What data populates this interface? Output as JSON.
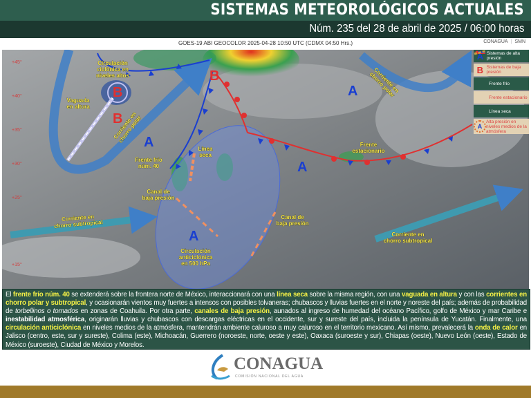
{
  "header": {
    "title": "SISTEMAS METEOROLÓGICOS ACTUALES",
    "subtitle": "Núm. 235 del 28 de abril de 2025 / 06:00 horas"
  },
  "image_caption": "GOES-19 ABI GEOCOLOR 2025-04-28 10:50 UTC (CDMX  04:50 Hrs.)",
  "caption_logos": [
    "CONAGUA",
    "SMN"
  ],
  "latitudes": [
    "+45°",
    "+40°",
    "+35°",
    "+30°",
    "+25°",
    "+15°"
  ],
  "legend": [
    {
      "symbol": "A",
      "label": "Sistemas de alta presión",
      "color": "#1a3fd0"
    },
    {
      "symbol": "B",
      "label": "Sistemas de baja presión",
      "color": "#e03030"
    },
    {
      "symbol": "cold-front-icon",
      "label": "Frente frío"
    },
    {
      "symbol": "stationary-front-icon",
      "label": "Frente estacionario"
    },
    {
      "symbol": "dry-line-icon",
      "label": "Línea seca"
    },
    {
      "symbol": "A",
      "label": "Alta presión en niveles medios de la atmósfera"
    }
  ],
  "map": {
    "letters": {
      "high": "A",
      "low": "B"
    },
    "labels": {
      "cyclonic": [
        "Circulación",
        "ciclónica en",
        "niveles altos"
      ],
      "trough": [
        "Vaguada",
        "en altura"
      ],
      "polar_jet_west": [
        "Corriente en",
        "chorro polar"
      ],
      "cold_front": [
        "Frente frío",
        "núm. 40"
      ],
      "dry_line": [
        "Línea",
        "seca"
      ],
      "low_channel_west": [
        "Canal de",
        "baja presión"
      ],
      "subtropical_west": [
        "Corriente en",
        "chorro subtropical"
      ],
      "anticyclonic": [
        "Circulación",
        "anticiclónica",
        "en 500 hPa"
      ],
      "low_channel_east": [
        "Canal de",
        "baja presión"
      ],
      "polar_jet_east": [
        "Corriente en",
        "chorro polar"
      ],
      "stationary_front": [
        "Frente",
        "estacionario"
      ],
      "subtropical_east": [
        "Corriente en",
        "chorro subtropical"
      ]
    }
  },
  "summary": [
    {
      "t": "El ",
      "s": ""
    },
    {
      "t": "frente frío núm. 40",
      "s": "hl"
    },
    {
      "t": " se extenderá sobre la frontera norte de México, interaccionará con una ",
      "s": ""
    },
    {
      "t": "línea seca",
      "s": "hl"
    },
    {
      "t": " sobre la misma región, con una ",
      "s": ""
    },
    {
      "t": "vaguada en altura",
      "s": "hl"
    },
    {
      "t": " y con las ",
      "s": ""
    },
    {
      "t": "corrientes en chorro polar y subtropical",
      "s": "hl"
    },
    {
      "t": ", y ocasionarán vientos muy fuertes a intensos con posibles tolvaneras; chubascos y lluvias fuertes en el norte y noreste del país; además de probabilidad de ",
      "s": ""
    },
    {
      "t": "torbellinos o tornados",
      "s": "it"
    },
    {
      "t": " en zonas de Coahuila. Por otra parte, ",
      "s": ""
    },
    {
      "t": "canales de baja presión",
      "s": "hl"
    },
    {
      "t": ", aunados al ingreso de humedad del océano Pacífico, golfo de México y mar Caribe e ",
      "s": ""
    },
    {
      "t": "inestabilidad atmosférica",
      "s": "bw"
    },
    {
      "t": ", originarán lluvias y chubascos con descargas eléctricas en el occidente, sur y sureste del país, incluida la península de Yucatán. Finalmente, una ",
      "s": ""
    },
    {
      "t": "circulación anticiclónica",
      "s": "hl"
    },
    {
      "t": " en niveles medios de la atmósfera, mantendrán ambiente caluroso a muy caluroso en el territorio mexicano. Así mismo, prevalecerá la ",
      "s": ""
    },
    {
      "t": "onda de calor",
      "s": "hl"
    },
    {
      "t": " en Jalisco (centro, este, sur y sureste), Colima (este), Michoacán, Guerrero (noroeste, norte, oeste y este), Oaxaca (suroeste y sur), Chiapas (oeste), Nuevo León (oeste), Estado de México (suroeste), Ciudad de México y Morelos.",
      "s": ""
    }
  ],
  "footer": {
    "logo_name": "CONAGUA",
    "logo_sub": "COMISIÓN NACIONAL DEL AGUA"
  },
  "colors": {
    "header_green": "#2e5e4e",
    "header_dark": "#1c3830",
    "text_panel": "#2c5446",
    "highlight": "#f4f046",
    "high_pressure": "#1a3fd0",
    "low_pressure": "#e03030",
    "footer_gold": "#a07a2a"
  }
}
